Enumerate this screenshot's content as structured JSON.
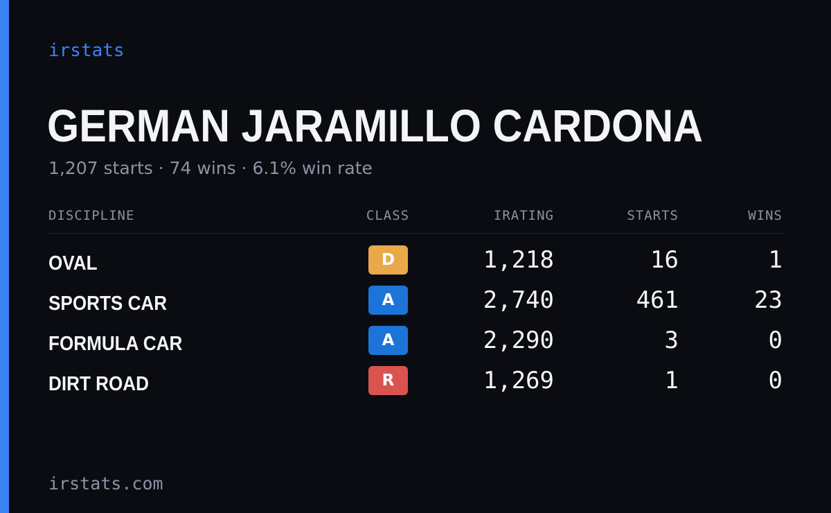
{
  "brand": "irstats",
  "driver_name": "GERMAN JARAMILLO CARDONA",
  "summary": "1,207 starts · 74 wins · 6.1% win rate",
  "headers": {
    "discipline": "DISCIPLINE",
    "class": "CLASS",
    "irating": "IRATING",
    "starts": "STARTS",
    "wins": "WINS"
  },
  "rows": [
    {
      "discipline": "OVAL",
      "class": "D",
      "class_color": "#e9a94b",
      "irating": "1,218",
      "starts": "16",
      "wins": "1"
    },
    {
      "discipline": "SPORTS CAR",
      "class": "A",
      "class_color": "#1d74d8",
      "irating": "2,740",
      "starts": "461",
      "wins": "23"
    },
    {
      "discipline": "FORMULA CAR",
      "class": "A",
      "class_color": "#1d74d8",
      "irating": "2,290",
      "starts": "3",
      "wins": "0"
    },
    {
      "discipline": "DIRT ROAD",
      "class": "R",
      "class_color": "#d9534f",
      "irating": "1,269",
      "starts": "1",
      "wins": "0"
    }
  ],
  "footer": "irstats.com",
  "colors": {
    "accent": "#3b82f6",
    "background": "#0a0c12",
    "text": "#f3f4f6",
    "muted": "#8b93a5"
  }
}
